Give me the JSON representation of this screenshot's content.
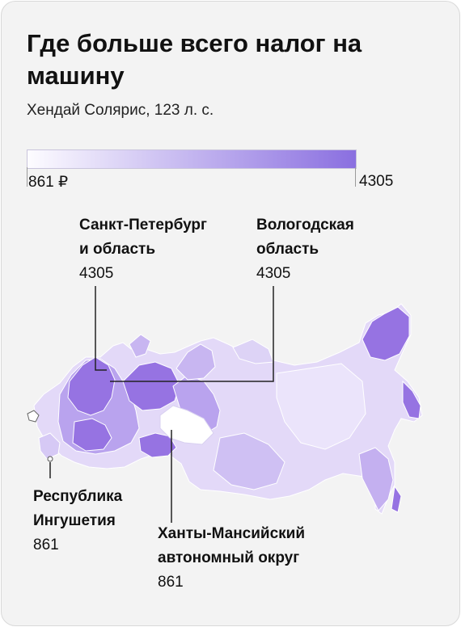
{
  "title": "Где больше всего налог на машину",
  "subtitle": "Хендай Солярис, 123 л. с.",
  "scale": {
    "min_label": "861 ₽",
    "max_label": "4305",
    "min_value": 861,
    "max_value": 4305,
    "color_min": "#fdfcff",
    "color_max": "#8a6fe0"
  },
  "callouts": {
    "spb": {
      "name_line1": "Санкт-Петербург",
      "name_line2": "и область",
      "value": "4305"
    },
    "vologda": {
      "name_line1": "Вологодская",
      "name_line2": "область",
      "value": "4305"
    },
    "ingushetia": {
      "name_line1": "Республика",
      "name_line2": "Ингушетия",
      "value": "861"
    },
    "khanty": {
      "name_line1": "Ханты-Мансийский",
      "name_line2": "автономный округ",
      "value": "861"
    }
  },
  "colors": {
    "background": "#f3f3f3",
    "leader_line": "#222222",
    "region_high": "#9673e2",
    "region_mid": "#b9a3ee",
    "region_low": "#e2d9f8",
    "region_min": "#ffffff"
  }
}
